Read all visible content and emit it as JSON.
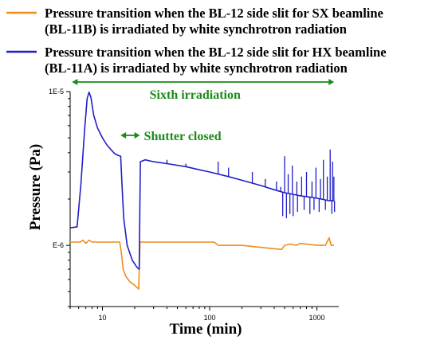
{
  "chart_data": {
    "type": "line",
    "xlabel": "Time (min)",
    "ylabel": "Pressure (Pa)",
    "x_scale": "log",
    "y_scale": "log",
    "xlim": [
      5,
      1600
    ],
    "ylim": [
      4e-07,
      1e-05
    ],
    "x_ticks": [
      {
        "value": 10,
        "label": "10"
      },
      {
        "value": 100,
        "label": "100"
      },
      {
        "value": 1000,
        "label": "1000"
      }
    ],
    "y_ticks": [
      {
        "value": 1e-05,
        "label": "1E-5"
      },
      {
        "value": 1e-06,
        "label": "E-6"
      }
    ],
    "grid": false,
    "legend_position": "top",
    "colors": {
      "sx": "#f08c1e",
      "hx": "#1f1fc8",
      "annotation": "#1a8a1a",
      "axis": "#000000"
    },
    "series": [
      {
        "name": "Pressure transition when the BL-12 side slit for SX beamline (BL-11B) is irradiated by white synchrotron radiation",
        "color": "#f08c1e",
        "points": [
          [
            5,
            1.05e-06
          ],
          [
            6.2,
            1.05e-06
          ],
          [
            6.6,
            1.08e-06
          ],
          [
            7.0,
            1.03e-06
          ],
          [
            7.5,
            1.08e-06
          ],
          [
            8.0,
            1.05e-06
          ],
          [
            14.5,
            1.05e-06
          ],
          [
            15.0,
            9e-07
          ],
          [
            15.6,
            7e-07
          ],
          [
            16.5,
            6.3e-07
          ],
          [
            18,
            5.8e-07
          ],
          [
            20,
            5.5e-07
          ],
          [
            21.8,
            5.2e-07
          ],
          [
            22.4,
            1.05e-06
          ],
          [
            110,
            1.05e-06
          ],
          [
            120,
            1e-06
          ],
          [
            200,
            1e-06
          ],
          [
            300,
            9.7e-07
          ],
          [
            470,
            9.4e-07
          ],
          [
            500,
            1e-06
          ],
          [
            560,
            1.02e-06
          ],
          [
            640,
            1e-06
          ],
          [
            700,
            1.03e-06
          ],
          [
            1000,
            1e-06
          ],
          [
            1200,
            1e-06
          ],
          [
            1300,
            1.12e-06
          ],
          [
            1360,
            1e-06
          ],
          [
            1450,
            1e-06
          ]
        ]
      },
      {
        "name": "Pressure transition when the BL-12 side slit for HX beamline (BL-11A) is irradiated by white synchrotron radiation",
        "color": "#1f1fc8",
        "points": [
          [
            5,
            1.3e-06
          ],
          [
            5.8,
            1.32e-06
          ],
          [
            6.3,
            2.5e-06
          ],
          [
            6.8,
            5.5e-06
          ],
          [
            7.2,
            9e-06
          ],
          [
            7.5,
            9.9e-06
          ],
          [
            7.8,
            9.2e-06
          ],
          [
            8.3,
            7e-06
          ],
          [
            9,
            5.8e-06
          ],
          [
            10,
            5e-06
          ],
          [
            11,
            4.5e-06
          ],
          [
            12,
            4.2e-06
          ],
          [
            13,
            3.95e-06
          ],
          [
            14,
            3.85e-06
          ],
          [
            14.8,
            3.8e-06
          ],
          [
            15.2,
            2.5e-06
          ],
          [
            15.8,
            1.5e-06
          ],
          [
            17,
            1e-06
          ],
          [
            19,
            8e-07
          ],
          [
            21,
            7.2e-07
          ],
          [
            22,
            7e-07
          ],
          [
            22.6,
            3.5e-06
          ],
          [
            25,
            3.6e-06
          ],
          [
            30,
            3.5e-06
          ],
          [
            40,
            3.4e-06
          ],
          [
            60,
            3.25e-06
          ],
          [
            80,
            3.1e-06
          ],
          [
            100,
            3e-06
          ],
          [
            150,
            2.8e-06
          ],
          [
            200,
            2.65e-06
          ],
          [
            300,
            2.45e-06
          ],
          [
            400,
            2.3e-06
          ],
          [
            500,
            2.2e-06
          ],
          [
            700,
            2.1e-06
          ],
          [
            900,
            2.05e-06
          ],
          [
            1100,
            2e-06
          ],
          [
            1300,
            1.95e-06
          ],
          [
            1450,
            1.95e-06
          ]
        ]
      }
    ],
    "spikes": [
      {
        "series": 1,
        "x": [
          40,
          60,
          120,
          150,
          250,
          330,
          420,
          460,
          500,
          540,
          590,
          650,
          720,
          800,
          900,
          980,
          1080,
          1150,
          1250,
          1330,
          1400,
          1440
        ],
        "y": [
          3.6e-06,
          3.4e-06,
          3.5e-06,
          3.2e-06,
          3e-06,
          2.7e-06,
          2.6e-06,
          2.4e-06,
          3.8e-06,
          2.9e-06,
          3.3e-06,
          2.6e-06,
          2.8e-06,
          3e-06,
          2.6e-06,
          3.2e-06,
          2.7e-06,
          3.6e-06,
          2.8e-06,
          4.2e-06,
          3.5e-06,
          2.8e-06
        ]
      },
      {
        "series": 1,
        "x": [
          480,
          520,
          560,
          600,
          660,
          760,
          860,
          940,
          1050,
          1200,
          1380,
          1460
        ],
        "y": [
          1.55e-06,
          1.5e-06,
          1.6e-06,
          1.55e-06,
          1.65e-06,
          1.7e-06,
          1.6e-06,
          1.7e-06,
          1.65e-06,
          1.7e-06,
          1.6e-06,
          1.65e-06
        ]
      }
    ],
    "annotations": [
      {
        "text": "Sixth irradiation",
        "x_start": 5.2,
        "x_end": 1450
      },
      {
        "text": "Shutter closed",
        "x_start": 15.0,
        "x_end": 22.0
      }
    ]
  }
}
